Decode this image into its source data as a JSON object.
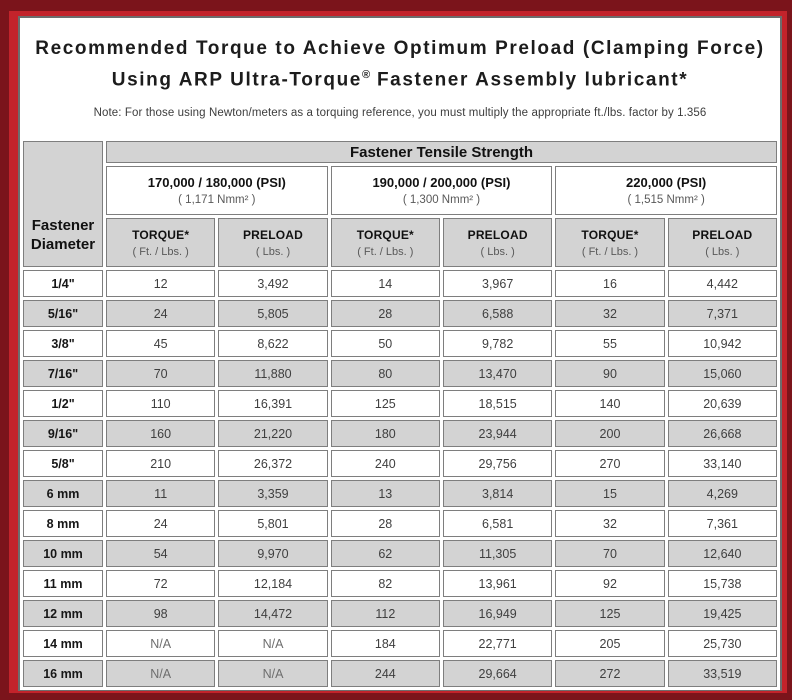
{
  "colors": {
    "frame_outer": "#7b141b",
    "frame_inner": "#c3232b",
    "cell_gray": "#d3d3d3",
    "cell_border": "#7e7e7e",
    "panel_border": "#6d6d6d"
  },
  "title": {
    "line1": "Recommended Torque to Achieve Optimum Preload (Clamping Force)",
    "line2_prefix": "Using ARP Ultra-Torque",
    "line2_reg": "®",
    "line2_suffix": " Fastener Assembly lubricant*",
    "note": "Note: For those using Newton/meters as a torquing reference, you must multiply the appropriate ft./lbs. factor by 1.356"
  },
  "table": {
    "tensile_header": "Fastener Tensile Strength",
    "diameter_header_line1": "Fastener",
    "diameter_header_line2": "Diameter",
    "strength_columns": [
      {
        "psi": "170,000 / 180,000 (PSI)",
        "nmm": "( 1,171 Nmm² )"
      },
      {
        "psi": "190,000 / 200,000 (PSI)",
        "nmm": "( 1,300 Nmm² )"
      },
      {
        "psi": "220,000 (PSI)",
        "nmm": "( 1,515 Nmm² )"
      }
    ],
    "sub_headers": {
      "torque_label": "TORQUE*",
      "torque_unit": "( Ft. / Lbs. )",
      "preload_label": "PRELOAD",
      "preload_unit": "( Lbs. )"
    },
    "rows": [
      {
        "diameter": "1/4\"",
        "values": [
          "12",
          "3,492",
          "14",
          "3,967",
          "16",
          "4,442"
        ]
      },
      {
        "diameter": "5/16\"",
        "values": [
          "24",
          "5,805",
          "28",
          "6,588",
          "32",
          "7,371"
        ]
      },
      {
        "diameter": "3/8\"",
        "values": [
          "45",
          "8,622",
          "50",
          "9,782",
          "55",
          "10,942"
        ]
      },
      {
        "diameter": "7/16\"",
        "values": [
          "70",
          "11,880",
          "80",
          "13,470",
          "90",
          "15,060"
        ]
      },
      {
        "diameter": "1/2\"",
        "values": [
          "110",
          "16,391",
          "125",
          "18,515",
          "140",
          "20,639"
        ]
      },
      {
        "diameter": "9/16\"",
        "values": [
          "160",
          "21,220",
          "180",
          "23,944",
          "200",
          "26,668"
        ]
      },
      {
        "diameter": "5/8\"",
        "values": [
          "210",
          "26,372",
          "240",
          "29,756",
          "270",
          "33,140"
        ]
      },
      {
        "diameter": "6 mm",
        "values": [
          "11",
          "3,359",
          "13",
          "3,814",
          "15",
          "4,269"
        ]
      },
      {
        "diameter": "8 mm",
        "values": [
          "24",
          "5,801",
          "28",
          "6,581",
          "32",
          "7,361"
        ]
      },
      {
        "diameter": "10 mm",
        "values": [
          "54",
          "9,970",
          "62",
          "11,305",
          "70",
          "12,640"
        ]
      },
      {
        "diameter": "11 mm",
        "values": [
          "72",
          "12,184",
          "82",
          "13,961",
          "92",
          "15,738"
        ]
      },
      {
        "diameter": "12 mm",
        "values": [
          "98",
          "14,472",
          "112",
          "16,949",
          "125",
          "19,425"
        ]
      },
      {
        "diameter": "14 mm",
        "values": [
          "N/A",
          "N/A",
          "184",
          "22,771",
          "205",
          "25,730"
        ]
      },
      {
        "diameter": "16 mm",
        "values": [
          "N/A",
          "N/A",
          "244",
          "29,664",
          "272",
          "33,519"
        ]
      }
    ]
  }
}
